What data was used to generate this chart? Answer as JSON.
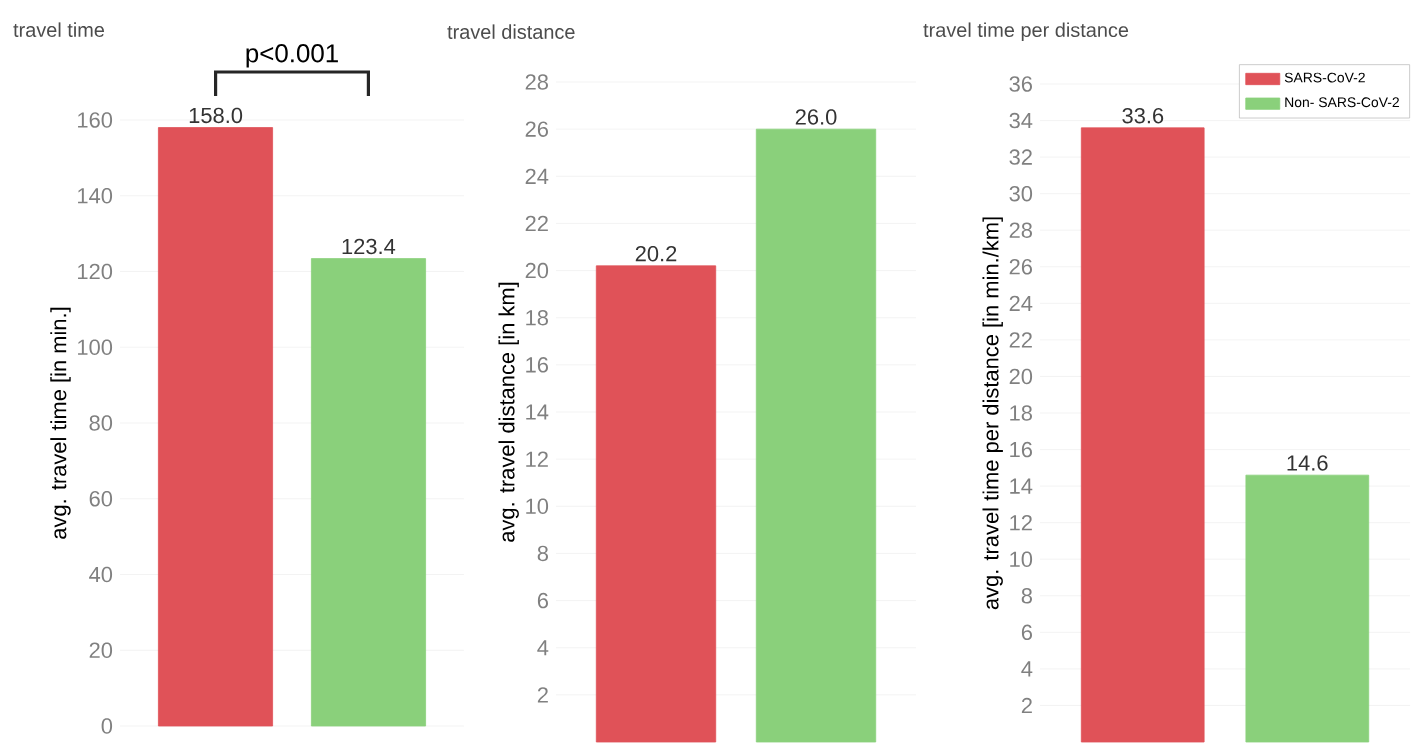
{
  "chart_data": [
    {
      "type": "bar",
      "title": "travel time",
      "ylabel": "avg. travel time [in min.]",
      "categories": [
        null
      ],
      "series": [
        {
          "color": "#e05258",
          "values": [
            158.0
          ],
          "value_labels": [
            "158.0"
          ]
        },
        {
          "color": "#8ad07b",
          "values": [
            123.4
          ],
          "value_labels": [
            "123.4"
          ]
        }
      ],
      "ylim": [
        0,
        160
      ],
      "yticks": [
        0,
        20,
        40,
        60,
        80,
        100,
        120,
        140,
        160
      ],
      "grid": "y",
      "annotations": [
        "p<0.001"
      ]
    },
    {
      "type": "bar",
      "title": "travel distance",
      "ylabel": "avg. travel distance [in km]",
      "categories": [
        null
      ],
      "series": [
        {
          "color": "#e05258",
          "values": [
            20.2
          ],
          "value_labels": [
            "20.2"
          ]
        },
        {
          "color": "#8ad07b",
          "values": [
            26.0
          ],
          "value_labels": [
            "26.0"
          ]
        }
      ],
      "ylim": [
        0,
        28
      ],
      "yticks": [
        2,
        4,
        6,
        8,
        10,
        12,
        14,
        16,
        18,
        20,
        22,
        24,
        26,
        28
      ],
      "grid": "y"
    },
    {
      "type": "bar",
      "title": "travel time per distance",
      "ylabel": "avg. travel time per distance [in min./km]",
      "categories": [
        null
      ],
      "series": [
        {
          "name": "SARS-CoV-2",
          "color": "#e05258",
          "values": [
            33.6
          ],
          "value_labels": [
            "33.6"
          ]
        },
        {
          "name": "Non- SARS-CoV-2",
          "color": "#8ad07b",
          "values": [
            14.6
          ],
          "value_labels": [
            "14.6"
          ]
        }
      ],
      "ylim": [
        0,
        36
      ],
      "yticks": [
        2,
        4,
        6,
        8,
        10,
        12,
        14,
        16,
        18,
        20,
        22,
        24,
        26,
        28,
        30,
        32,
        34,
        36
      ],
      "grid": "y",
      "legend": "top right"
    }
  ]
}
